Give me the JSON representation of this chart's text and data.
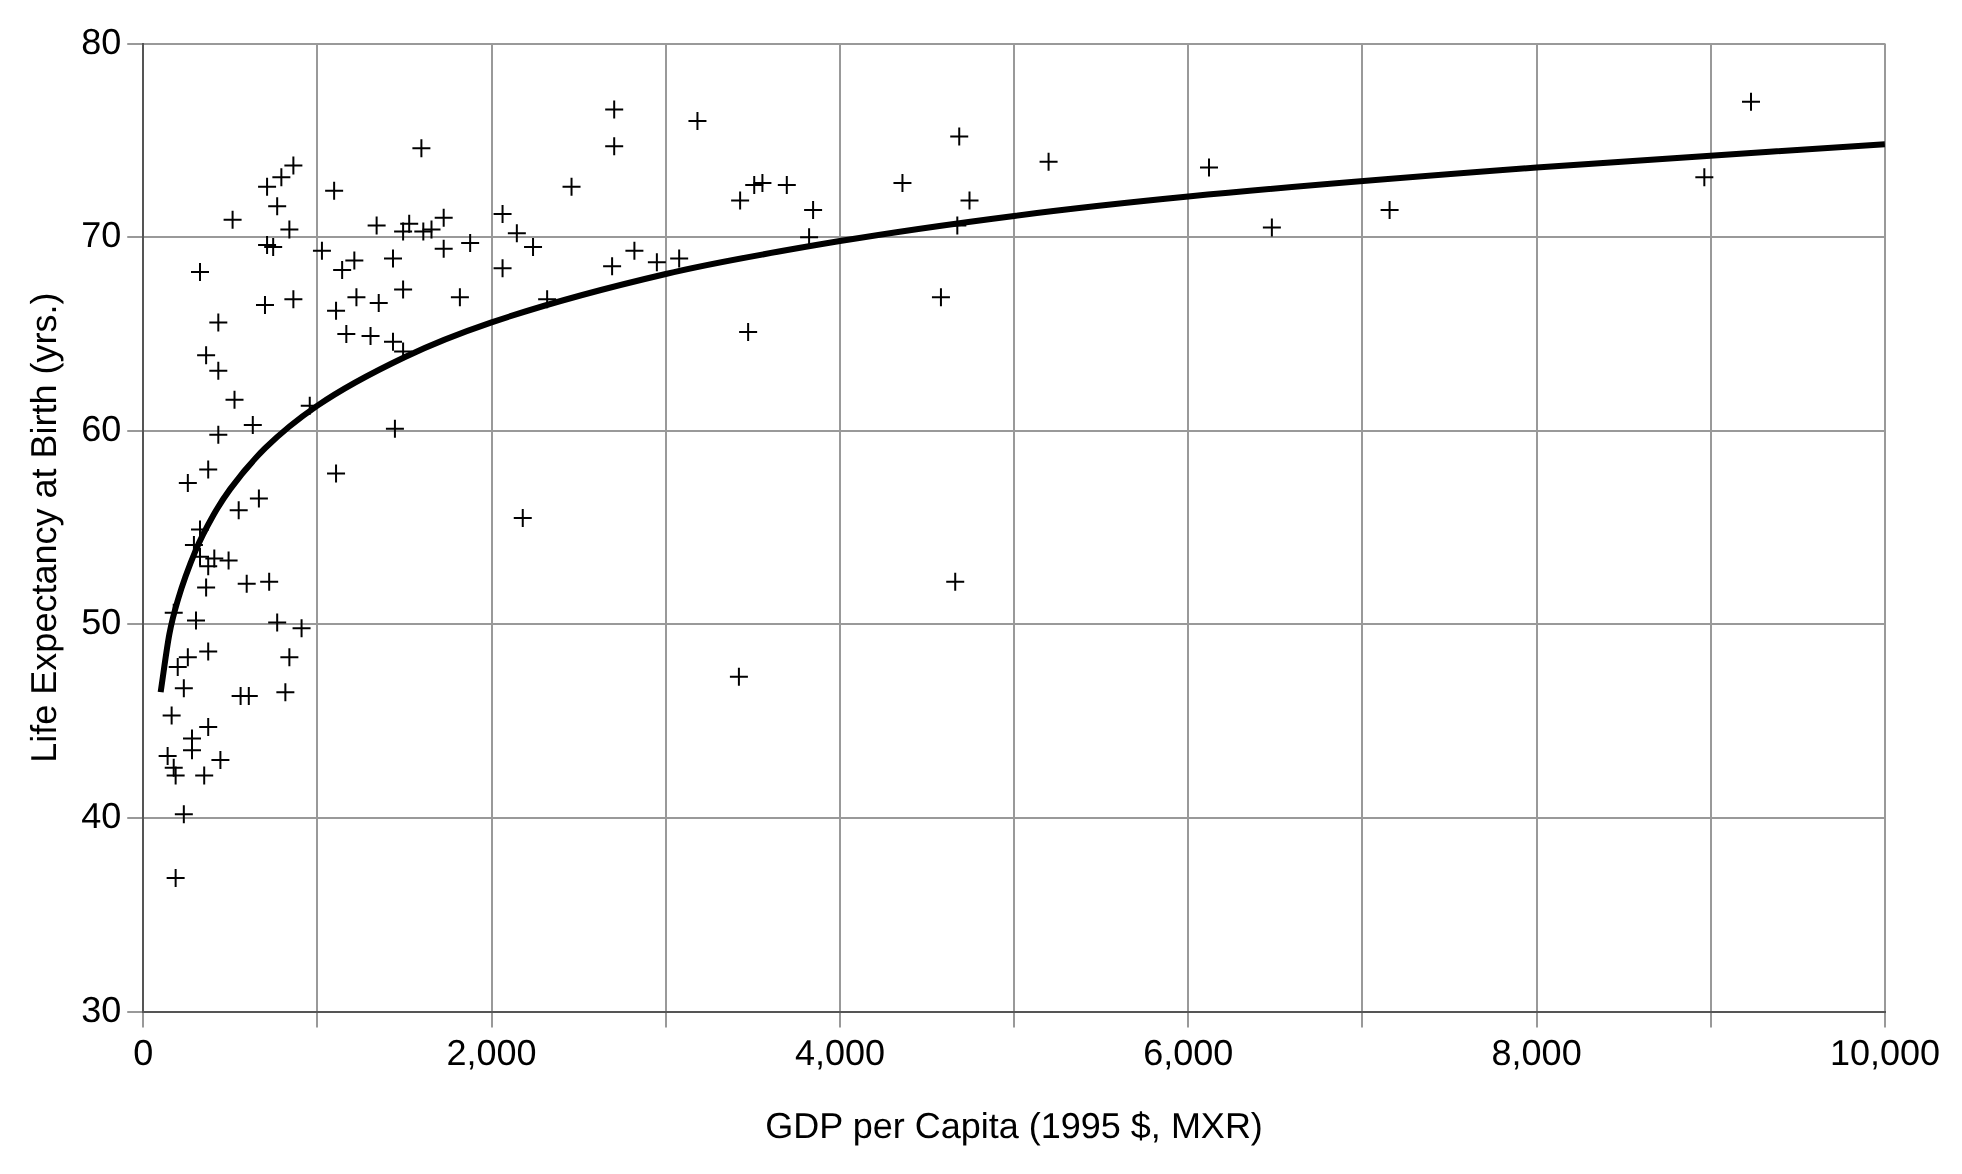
{
  "chart_data": {
    "type": "scatter",
    "xlabel": "GDP per Capita (1995 $, MXR)",
    "ylabel": "Life Expectancy at Birth (yrs.)",
    "xlim": [
      0,
      10000
    ],
    "ylim": [
      30,
      80
    ],
    "xticks": [
      0,
      {
        "value": 1000,
        "label": null
      },
      {
        "value": 2000,
        "label": "2,000"
      },
      {
        "value": 3000,
        "label": null
      },
      {
        "value": 4000,
        "label": "4,000"
      },
      {
        "value": 5000,
        "label": null
      },
      {
        "value": 6000,
        "label": "6,000"
      },
      {
        "value": 7000,
        "label": null
      },
      {
        "value": 8000,
        "label": "8,000"
      },
      {
        "value": 9000,
        "label": null
      },
      {
        "value": 10000,
        "label": "10,000"
      }
    ],
    "yticks": [
      30,
      40,
      50,
      60,
      70,
      80
    ],
    "grid": true,
    "legend": false,
    "series": [
      {
        "color": "#000000",
        "marker": "cross",
        "x": [
          186,
          233,
          140,
          175,
          186,
          280,
          280,
          373,
          443,
          350,
          163,
          233,
          198,
          256,
          373,
          559,
          606,
          816,
          839,
          769,
          909,
          303,
          175,
          361,
          594,
          723,
          373,
          408,
          326,
          490,
          291,
          326,
          2179,
          326,
          513,
          711,
          793,
          862,
          769,
          839,
          711,
          746,
          699,
          862,
          431,
          361,
          431,
          524,
          629,
          431,
          373,
          256,
          548,
          664,
          1107,
          1445,
          956,
          1096,
          1597,
          1026,
          1142,
          1212,
          1107,
          1224,
          1352,
          1434,
          1492,
          1818,
          1166,
          1305,
          1434,
          1492,
          1340,
          1527,
          1492,
          1608,
          1655,
          1725,
          1725,
          1877,
          2063,
          2145,
          2238,
          2063,
          2319,
          2459,
          2704,
          2692,
          2820,
          2704,
          3182,
          2949,
          3077,
          3427,
          3508,
          3555,
          3695,
          3846,
          3823,
          3473,
          3420,
          4359,
          4685,
          4744,
          4674,
          4580,
          4662,
          5198,
          6119,
          6480,
          7156,
          8963,
          9231
        ],
        "values": [
          36.9,
          40.2,
          43.2,
          42.6,
          42.2,
          44.1,
          43.5,
          44.7,
          43.0,
          42.2,
          45.3,
          46.7,
          47.8,
          48.3,
          48.6,
          46.3,
          46.3,
          46.5,
          48.3,
          50.1,
          49.8,
          50.2,
          50.6,
          51.9,
          52.1,
          52.2,
          53.0,
          53.4,
          53.5,
          53.3,
          54.1,
          54.9,
          55.5,
          68.2,
          70.9,
          72.6,
          73.1,
          73.7,
          71.6,
          70.4,
          69.6,
          69.5,
          66.5,
          66.8,
          65.6,
          63.9,
          63.1,
          61.6,
          60.3,
          59.8,
          58.0,
          57.3,
          55.9,
          56.5,
          57.8,
          60.1,
          61.3,
          72.4,
          74.6,
          69.3,
          68.3,
          68.8,
          66.2,
          66.9,
          66.6,
          68.9,
          67.3,
          66.9,
          65.0,
          64.9,
          64.6,
          64.1,
          70.6,
          70.7,
          70.3,
          70.3,
          70.4,
          71.0,
          69.4,
          69.7,
          71.2,
          70.2,
          69.5,
          68.4,
          66.8,
          72.6,
          74.7,
          68.5,
          69.3,
          76.6,
          76.0,
          68.7,
          68.9,
          71.9,
          72.7,
          72.8,
          72.7,
          71.4,
          70.0,
          65.1,
          47.3,
          72.8,
          75.2,
          71.9,
          70.6,
          66.9,
          52.2,
          73.9,
          73.6,
          70.5,
          71.4,
          73.1,
          77.0
        ]
      },
      {
        "type": "line",
        "color": "#000000",
        "marker": "none",
        "line_style": "solid",
        "x": [
          100,
          150,
          200,
          300,
          400,
          500,
          700,
          1000,
          1500,
          2000,
          3000,
          4000,
          5000,
          6000,
          8000,
          10000
        ],
        "values": [
          46.5,
          49.5,
          51.3,
          53.8,
          55.6,
          57.0,
          59.1,
          61.3,
          63.8,
          65.6,
          68.1,
          69.8,
          71.1,
          72.1,
          73.6,
          74.8
        ]
      }
    ]
  }
}
